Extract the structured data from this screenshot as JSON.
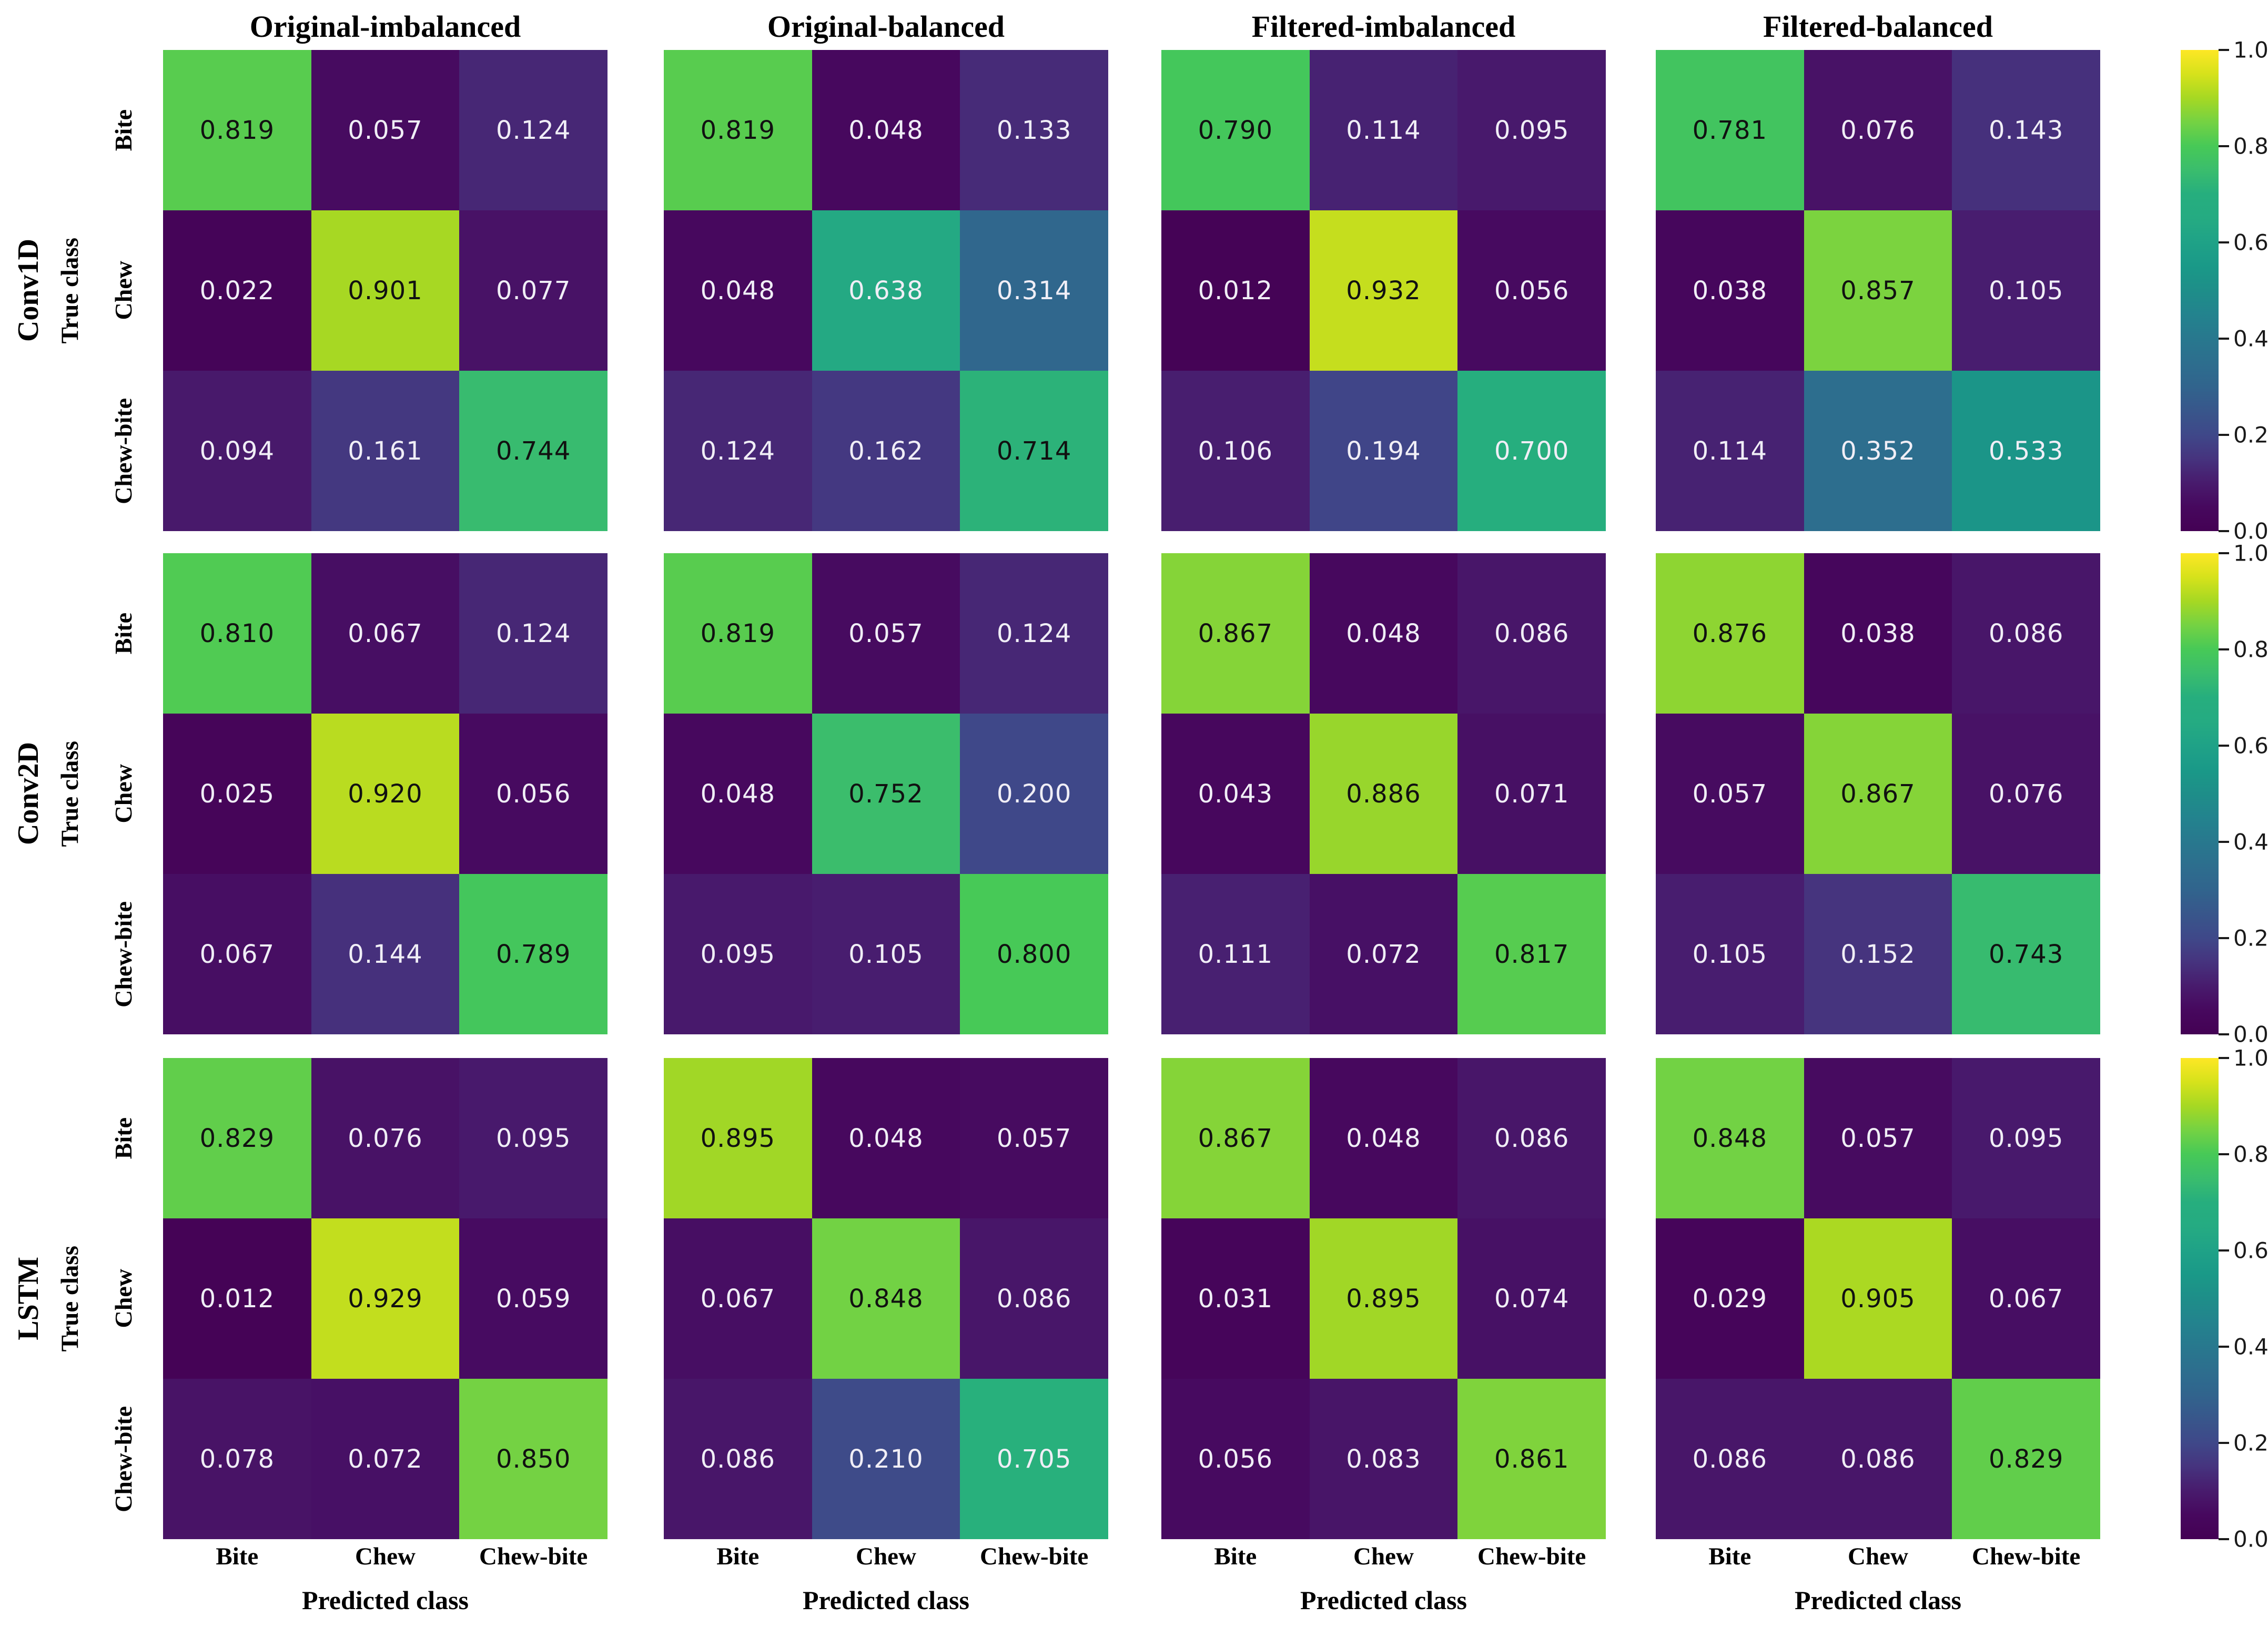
{
  "figure": {
    "column_titles": [
      "Original-imbalanced",
      "Original-balanced",
      "Filtered-imbalanced",
      "Filtered-balanced"
    ],
    "row_titles": [
      "Conv1D",
      "Conv2D",
      "LSTM"
    ],
    "y_axis_label": "True class",
    "x_axis_label": "Predicted class",
    "class_labels": [
      "Bite",
      "Chew",
      "Chew-bite"
    ]
  },
  "colorbar": {
    "tick_labels": [
      "1.0",
      "0.8",
      "0.6",
      "0.4",
      "0.2",
      "0.0"
    ],
    "tick_color": "#1a1a1a"
  },
  "chart_data": {
    "type": "heatmap",
    "colormap": "viridis",
    "vmin": 0.0,
    "vmax": 1.0,
    "x_categories": [
      "Bite",
      "Chew",
      "Chew-bite"
    ],
    "y_categories": [
      "Bite",
      "Chew",
      "Chew-bite"
    ],
    "xlabel": "Predicted class",
    "ylabel": "True class",
    "text_color_light": "#f0eef6",
    "text_color_dark": "#111111",
    "colormap_stops": [
      [
        0.0,
        "#440154"
      ],
      [
        0.05,
        "#47085e"
      ],
      [
        0.1,
        "#481b6d"
      ],
      [
        0.15,
        "#46337e"
      ],
      [
        0.2,
        "#3f4889"
      ],
      [
        0.25,
        "#38568b"
      ],
      [
        0.3,
        "#31648d"
      ],
      [
        0.35,
        "#2d6e8e"
      ],
      [
        0.4,
        "#28788e"
      ],
      [
        0.45,
        "#23838e"
      ],
      [
        0.5,
        "#1e8e89"
      ],
      [
        0.55,
        "#1a9988"
      ],
      [
        0.6,
        "#1fa287"
      ],
      [
        0.65,
        "#25ab82"
      ],
      [
        0.7,
        "#26ae7e"
      ],
      [
        0.75,
        "#3abd6d"
      ],
      [
        0.8,
        "#47c957"
      ],
      [
        0.85,
        "#74d243"
      ],
      [
        0.9,
        "#a6d823"
      ],
      [
        0.95,
        "#d6e21b"
      ],
      [
        1.0,
        "#fde725"
      ]
    ],
    "matrices": [
      {
        "model": "Conv1D",
        "dataset": "Original-imbalanced",
        "values": [
          [
            0.819,
            0.057,
            0.124
          ],
          [
            0.022,
            0.901,
            0.077
          ],
          [
            0.094,
            0.161,
            0.744
          ]
        ]
      },
      {
        "model": "Conv1D",
        "dataset": "Original-balanced",
        "values": [
          [
            0.819,
            0.048,
            0.133
          ],
          [
            0.048,
            0.638,
            0.314
          ],
          [
            0.124,
            0.162,
            0.714
          ]
        ]
      },
      {
        "model": "Conv1D",
        "dataset": "Filtered-imbalanced",
        "values": [
          [
            0.79,
            0.114,
            0.095
          ],
          [
            0.012,
            0.932,
            0.056
          ],
          [
            0.106,
            0.194,
            0.7
          ]
        ]
      },
      {
        "model": "Conv1D",
        "dataset": "Filtered-balanced",
        "values": [
          [
            0.781,
            0.076,
            0.143
          ],
          [
            0.038,
            0.857,
            0.105
          ],
          [
            0.114,
            0.352,
            0.533
          ]
        ]
      },
      {
        "model": "Conv2D",
        "dataset": "Original-imbalanced",
        "values": [
          [
            0.81,
            0.067,
            0.124
          ],
          [
            0.025,
            0.92,
            0.056
          ],
          [
            0.067,
            0.144,
            0.789
          ]
        ]
      },
      {
        "model": "Conv2D",
        "dataset": "Original-balanced",
        "values": [
          [
            0.819,
            0.057,
            0.124
          ],
          [
            0.048,
            0.752,
            0.2
          ],
          [
            0.095,
            0.105,
            0.8
          ]
        ]
      },
      {
        "model": "Conv2D",
        "dataset": "Filtered-imbalanced",
        "values": [
          [
            0.867,
            0.048,
            0.086
          ],
          [
            0.043,
            0.886,
            0.071
          ],
          [
            0.111,
            0.072,
            0.817
          ]
        ]
      },
      {
        "model": "Conv2D",
        "dataset": "Filtered-balanced",
        "values": [
          [
            0.876,
            0.038,
            0.086
          ],
          [
            0.057,
            0.867,
            0.076
          ],
          [
            0.105,
            0.152,
            0.743
          ]
        ]
      },
      {
        "model": "LSTM",
        "dataset": "Original-imbalanced",
        "values": [
          [
            0.829,
            0.076,
            0.095
          ],
          [
            0.012,
            0.929,
            0.059
          ],
          [
            0.078,
            0.072,
            0.85
          ]
        ]
      },
      {
        "model": "LSTM",
        "dataset": "Original-balanced",
        "values": [
          [
            0.895,
            0.048,
            0.057
          ],
          [
            0.067,
            0.848,
            0.086
          ],
          [
            0.086,
            0.21,
            0.705
          ]
        ]
      },
      {
        "model": "LSTM",
        "dataset": "Filtered-imbalanced",
        "values": [
          [
            0.867,
            0.048,
            0.086
          ],
          [
            0.031,
            0.895,
            0.074
          ],
          [
            0.056,
            0.083,
            0.861
          ]
        ]
      },
      {
        "model": "LSTM",
        "dataset": "Filtered-balanced",
        "values": [
          [
            0.848,
            0.057,
            0.095
          ],
          [
            0.029,
            0.905,
            0.067
          ],
          [
            0.086,
            0.086,
            0.829
          ]
        ]
      }
    ]
  },
  "layout": {
    "matrix_lefts": [
      310,
      1262,
      2208,
      3148
    ],
    "row_tops": [
      95,
      1052,
      2012
    ],
    "matrix_width": 845,
    "matrix_height": 915
  }
}
